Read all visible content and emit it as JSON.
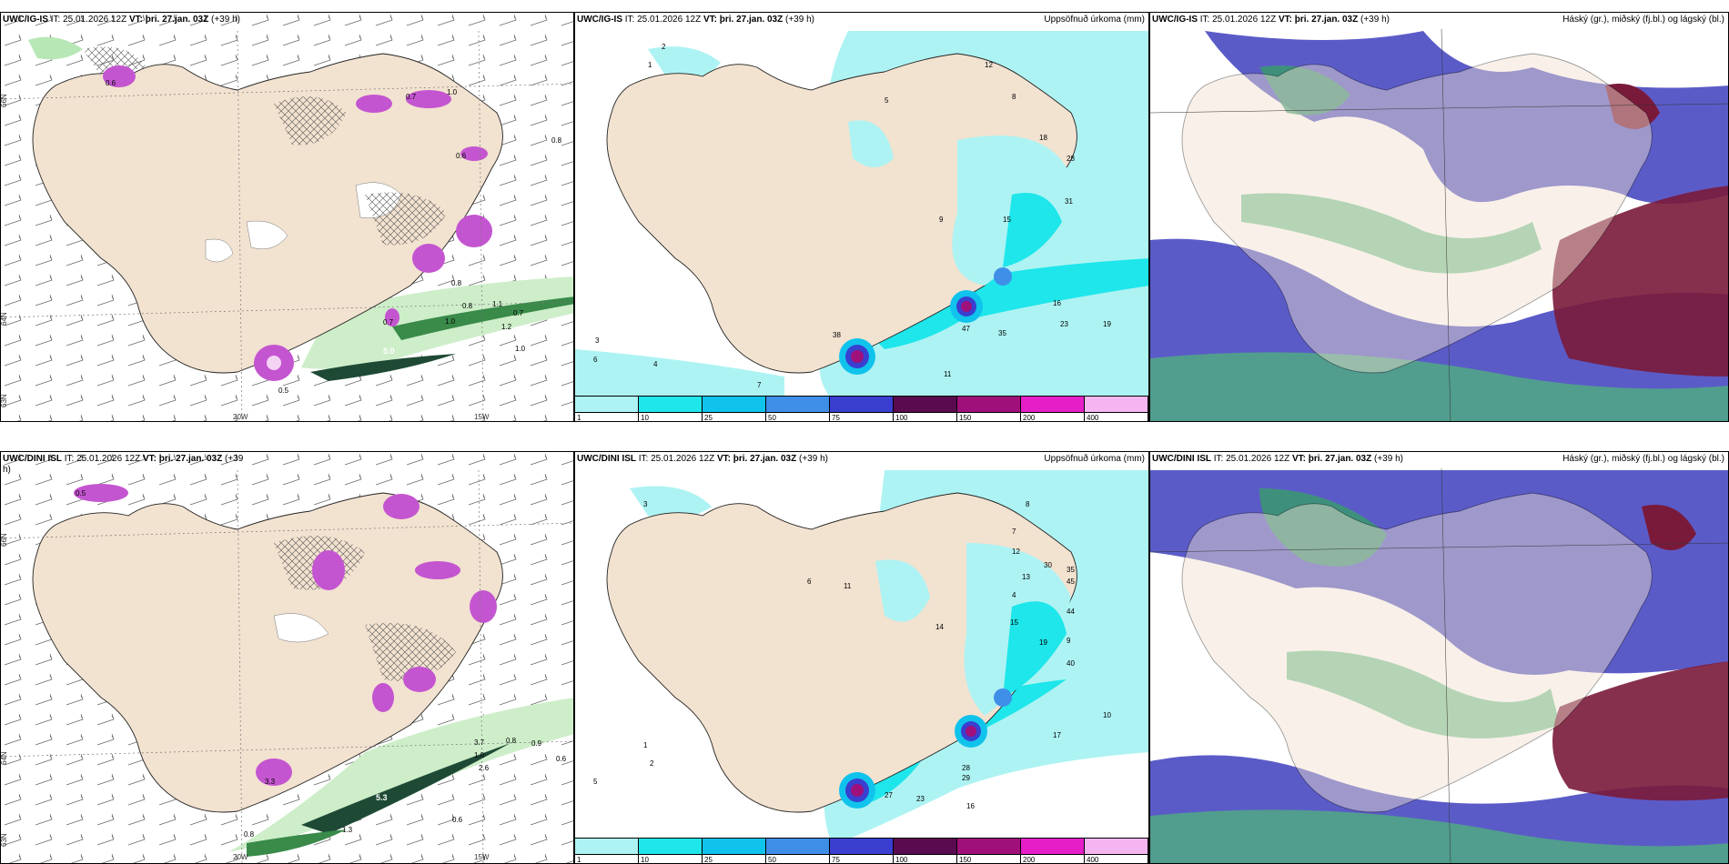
{
  "top": {
    "wind": {
      "title_model": "UWC/IG-IS",
      "title_it": "IT: 25.01.2026 12Z",
      "title_vt": "VT: þri. 27.jan. 03Z",
      "title_lead": "(+39 h)",
      "lat_labels": [
        "66N",
        "64N",
        "63N"
      ],
      "lon_labels": [
        "20W",
        "15W"
      ],
      "values": [
        "0.8",
        "0.7",
        "0.5",
        "1.0",
        "0.8",
        "1.1",
        "0.7",
        "1.2",
        "5.0",
        "1.0",
        "0.8",
        "0.6",
        "1.0",
        "0.7",
        "0.6"
      ]
    },
    "precip": {
      "title_model": "UWC/IG-IS",
      "title_it": "IT: 25.01.2026 12Z",
      "title_vt": "VT: þri. 27.jan. 03Z",
      "title_lead": "(+39 h)",
      "right_title": "Uppsöfnuð úrkoma (mm)",
      "values": [
        "1",
        "2",
        "3",
        "4",
        "5",
        "6",
        "7",
        "8",
        "9",
        "11",
        "12",
        "15",
        "16",
        "18",
        "19",
        "23",
        "28",
        "31",
        "35",
        "38",
        "47"
      ]
    },
    "cloud": {
      "title_model": "UWC/IG-IS",
      "title_it": "IT: 25.01.2026 12Z",
      "title_vt": "VT: þri. 27.jan. 03Z",
      "title_lead": "(+39 h)",
      "right_title": "Háský (gr.), miðský (fj.bl.) og lágský (bl.)"
    }
  },
  "bottom": {
    "wind": {
      "title_model": "UWC/DINI ISL",
      "title_it": "IT: 25.01.2026 12Z",
      "title_vt": "VT: þri. 27.jan. 03Z",
      "title_lead": "(+39",
      "title_lead2": "h)",
      "lat_labels": [
        "66N",
        "64N",
        "63N"
      ],
      "lon_labels": [
        "20W",
        "15W"
      ],
      "values": [
        "0.5",
        "1.0",
        "0.8",
        "0.9",
        "0.6",
        "3.3",
        "1.3",
        "0.6",
        "0.8",
        "5.3",
        "2.6",
        "3.7"
      ]
    },
    "precip": {
      "title_model": "UWC/DINI ISL",
      "title_it": "IT: 25.01.2026 12Z",
      "title_vt": "VT: þri. 27.jan. 03Z",
      "title_lead": "(+39 h)",
      "right_title": "Uppsöfnuð úrkoma (mm)",
      "values": [
        "1",
        "2",
        "3",
        "4",
        "5",
        "6",
        "7",
        "8",
        "9",
        "10",
        "11",
        "12",
        "13",
        "14",
        "15",
        "16",
        "17",
        "19",
        "23",
        "27",
        "28",
        "29",
        "30",
        "35",
        "40",
        "44",
        "45"
      ]
    },
    "cloud": {
      "title_model": "UWC/DINI ISL",
      "title_it": "IT: 25.01.2026 12Z",
      "title_vt": "VT: þri. 27.jan. 03Z",
      "title_lead": "(+39 h)",
      "right_title": "Háský (gr.), miðský (fj.bl.) og lágský (bl.)"
    }
  },
  "colorbar": {
    "ticks": [
      "1",
      "10",
      "25",
      "50",
      "75",
      "100",
      "150",
      "200",
      "400"
    ],
    "colors": [
      "#aef3f3",
      "#1ee6ea",
      "#10c3ec",
      "#3f8fe8",
      "#3a3fd0",
      "#5a0a4e",
      "#a0107a",
      "#e61ec8",
      "#f5b5f0"
    ]
  }
}
